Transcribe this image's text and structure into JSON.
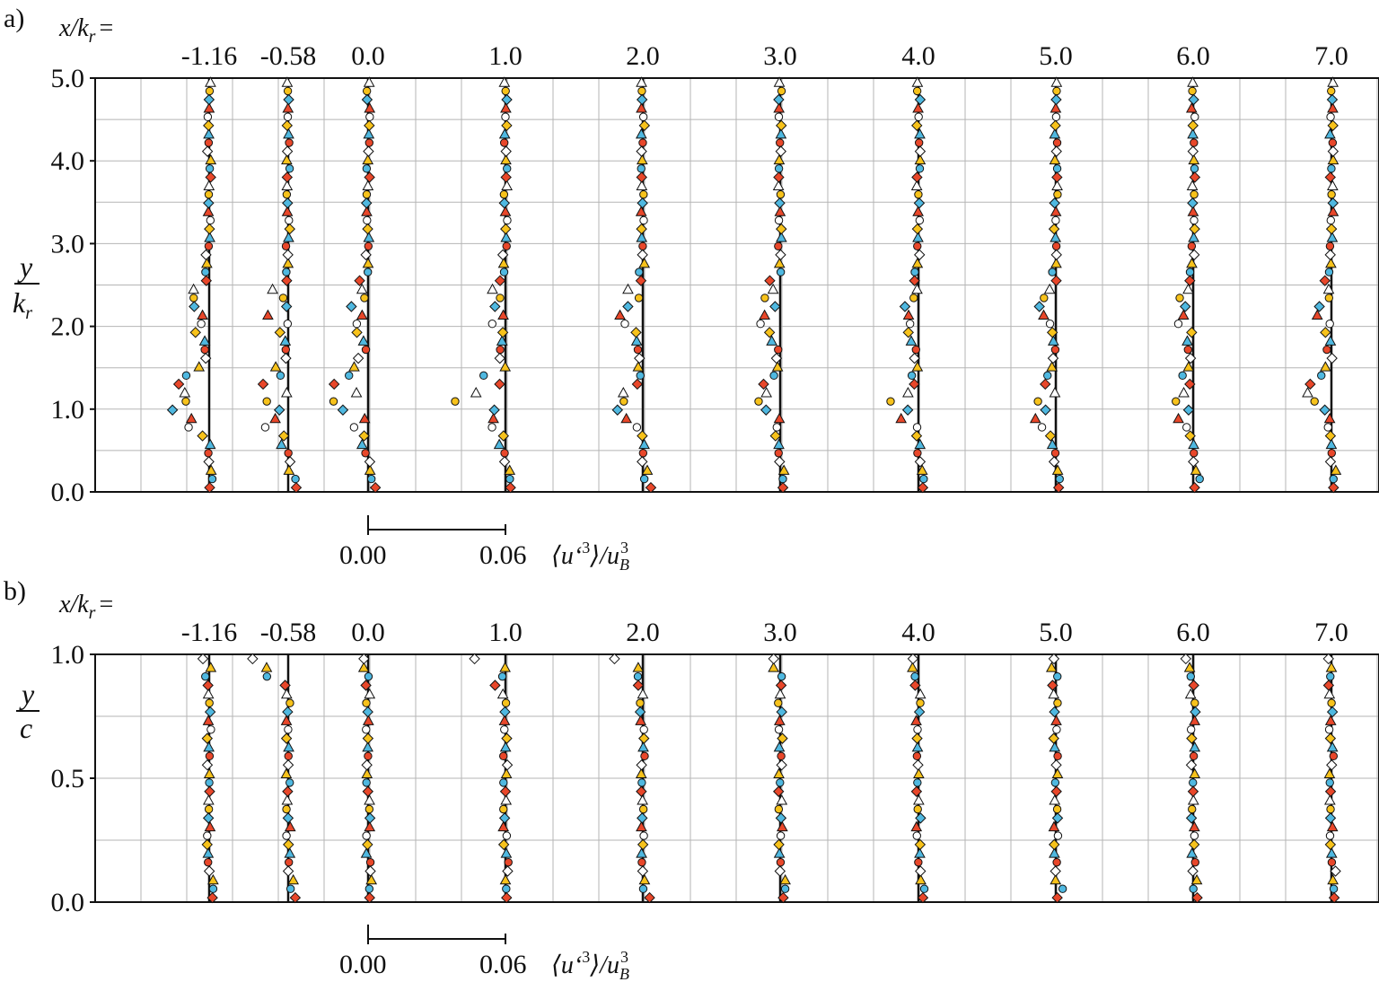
{
  "panels": [
    {
      "tag": "a)",
      "xhead": "x/k",
      "xhead_sub": "r",
      "xhead_eq": "=",
      "ylabel_num": "y",
      "ylabel_den": "k",
      "ylabel_den_sub": "r",
      "scale_zero": "0.00",
      "scale_end": "0.06",
      "scale_quantity": "⟨u‘",
      "scale_quantity_sup": "3",
      "scale_quantity_mid": "⟩/u",
      "scale_quantity_sub": "B",
      "scale_quantity_sup2": "3"
    },
    {
      "tag": "b)",
      "xhead": "x/k",
      "xhead_sub": "r",
      "xhead_eq": "=",
      "ylabel_num": "y",
      "ylabel_den": "c",
      "scale_zero": "0.00",
      "scale_end": "0.06",
      "scale_quantity": "⟨u‘",
      "scale_quantity_sup": "3",
      "scale_quantity_mid": "⟩/u",
      "scale_quantity_sub": "B",
      "scale_quantity_sup2": "3"
    }
  ],
  "chart_data": [
    {
      "type": "scatter",
      "panel": "a)",
      "station_labels": [
        "-1.16",
        "-0.58",
        "0.0",
        "1.0",
        "2.0",
        "3.0",
        "4.0",
        "5.0",
        "6.0",
        "7.0"
      ],
      "y_ticks": [
        "0.0",
        "1.0",
        "2.0",
        "3.0",
        "4.0",
        "5.0"
      ],
      "ylim": [
        0,
        5
      ],
      "x_unit_per_station_offset": 0.06,
      "grid": true,
      "colors": {
        "red": "#e8472a",
        "blue": "#4fb8e0",
        "yellow": "#f7c21b",
        "white": "#ffffff"
      },
      "markers": [
        "diamond",
        "circle",
        "triangle"
      ],
      "series_note_y": "y/k_r values 0–5 at every station"
    },
    {
      "type": "scatter",
      "panel": "b)",
      "station_labels": [
        "-1.16",
        "-0.58",
        "0.0",
        "1.0",
        "2.0",
        "3.0",
        "4.0",
        "5.0",
        "6.0",
        "7.0"
      ],
      "y_ticks": [
        "0.0",
        "0.5",
        "1.0"
      ],
      "ylim": [
        0,
        1
      ],
      "x_unit_per_station_offset": 0.06,
      "grid": true,
      "colors": {
        "red": "#e8472a",
        "blue": "#4fb8e0",
        "yellow": "#f7c21b",
        "white": "#ffffff"
      },
      "markers": [
        "diamond",
        "circle",
        "triangle"
      ]
    }
  ]
}
